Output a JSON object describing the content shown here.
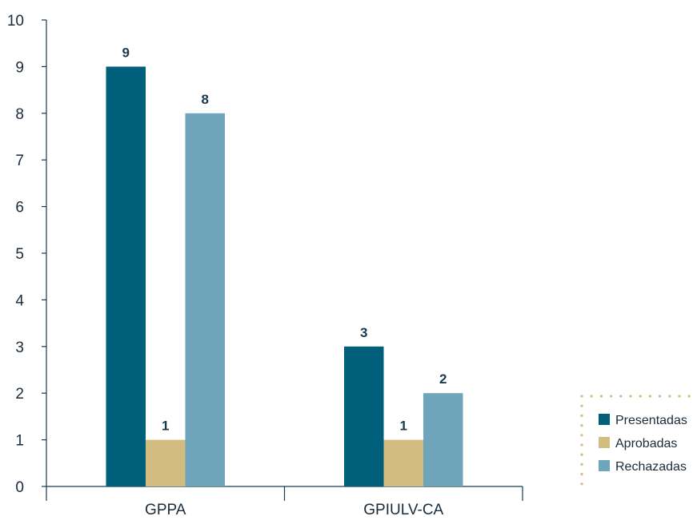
{
  "chart_data": {
    "type": "bar",
    "categories": [
      "GPPA",
      "GPIULV-CA"
    ],
    "series": [
      {
        "name": "Presentadas",
        "values": [
          9,
          3
        ],
        "color": "#005f7b"
      },
      {
        "name": "Aprobadas",
        "values": [
          1,
          1
        ],
        "color": "#d2bc7f"
      },
      {
        "name": "Rechazadas",
        "values": [
          8,
          2
        ],
        "color": "#6ea5bb"
      }
    ],
    "yticks": [
      0,
      1,
      2,
      3,
      4,
      5,
      6,
      7,
      8,
      9,
      10
    ],
    "ylim": [
      0,
      10
    ],
    "title": "",
    "xlabel": "",
    "ylabel": "",
    "grid": false,
    "legend_position": "bottom-right",
    "legend_border_color": "#d2bc7f",
    "axis_color": "#173a4c"
  }
}
